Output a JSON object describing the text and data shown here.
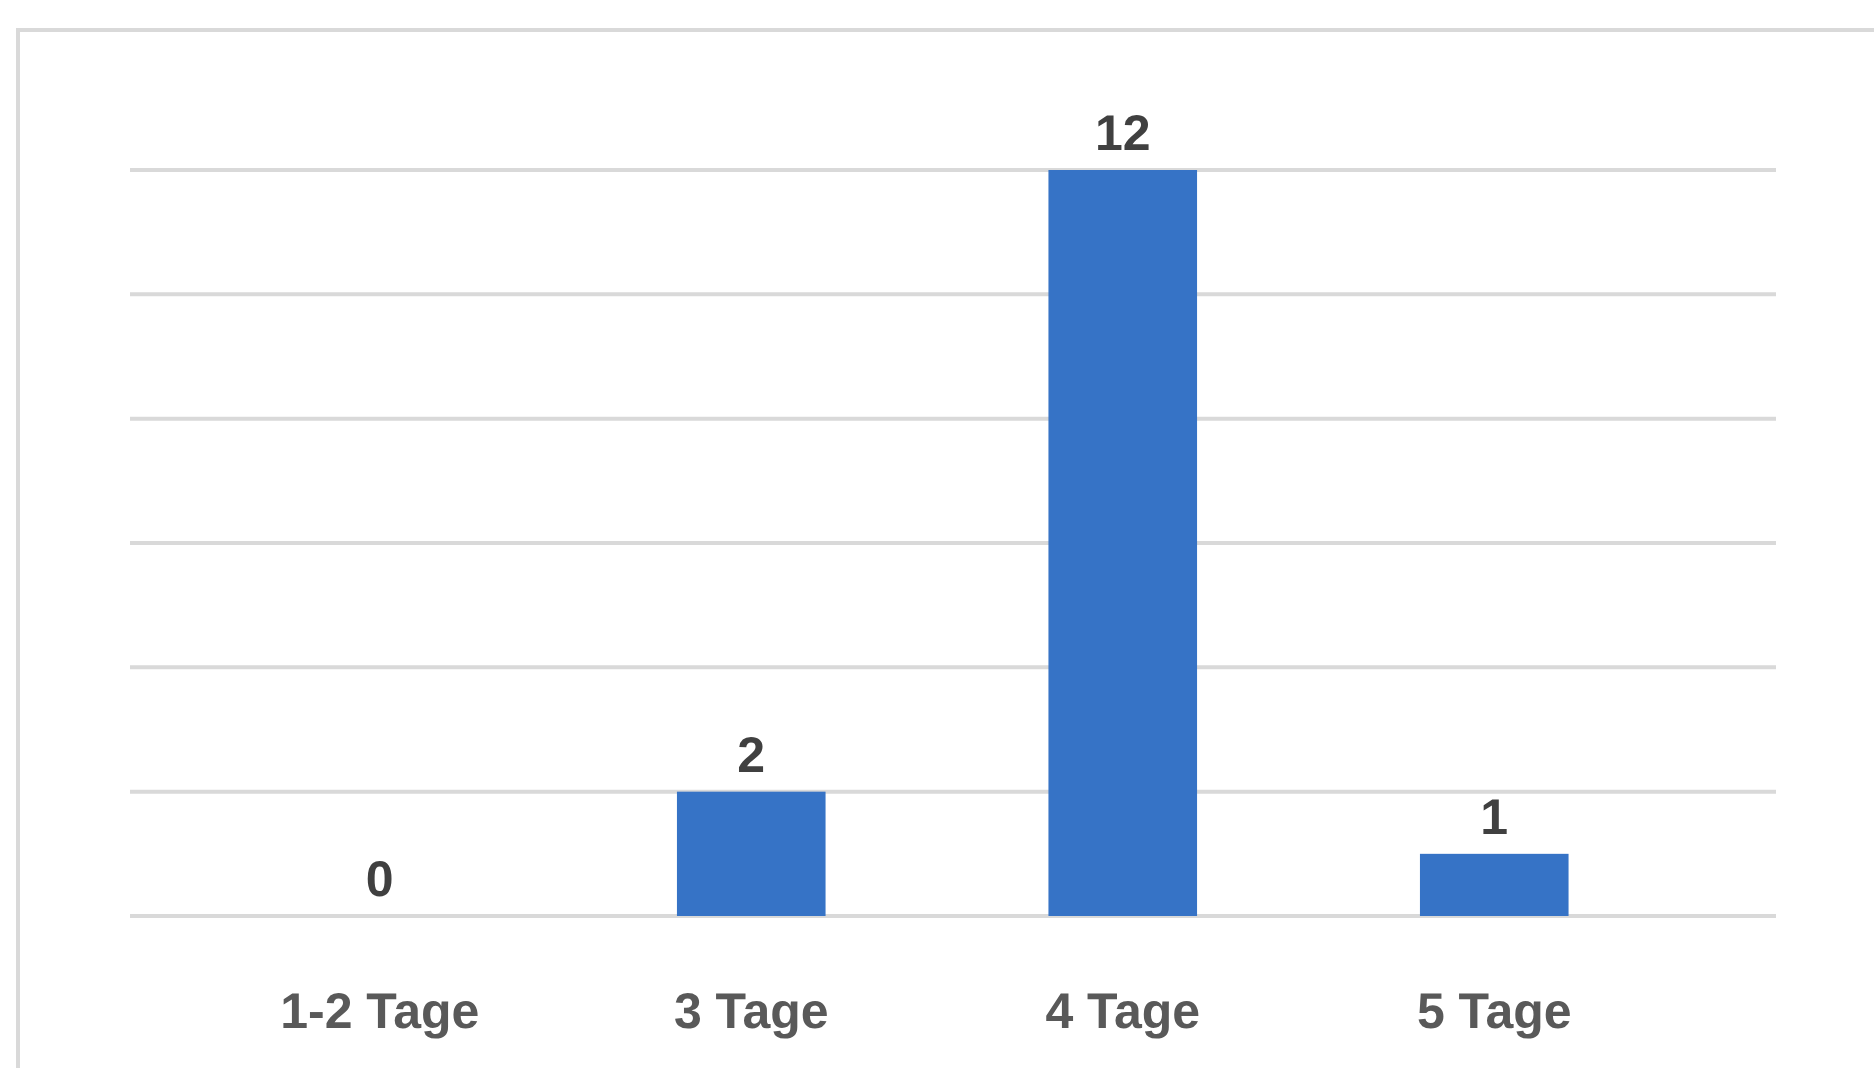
{
  "chart_data": {
    "type": "bar",
    "categories": [
      "1-2 Tage",
      "3 Tage",
      "4 Tage",
      "5 Tage"
    ],
    "values": [
      0,
      2,
      12,
      1
    ],
    "color": "#3673c6",
    "ylim": [
      0,
      12
    ],
    "yticks": [
      {
        "value": 0,
        "label": null
      },
      {
        "value": 2,
        "label": null
      },
      {
        "value": 4,
        "label": null
      },
      {
        "value": 6,
        "label": null
      },
      {
        "value": 8,
        "label": null
      },
      {
        "value": 10,
        "label": null
      },
      {
        "value": 12,
        "label": null
      }
    ],
    "tick_labels": "x",
    "grid": "y",
    "data_labels": true
  }
}
